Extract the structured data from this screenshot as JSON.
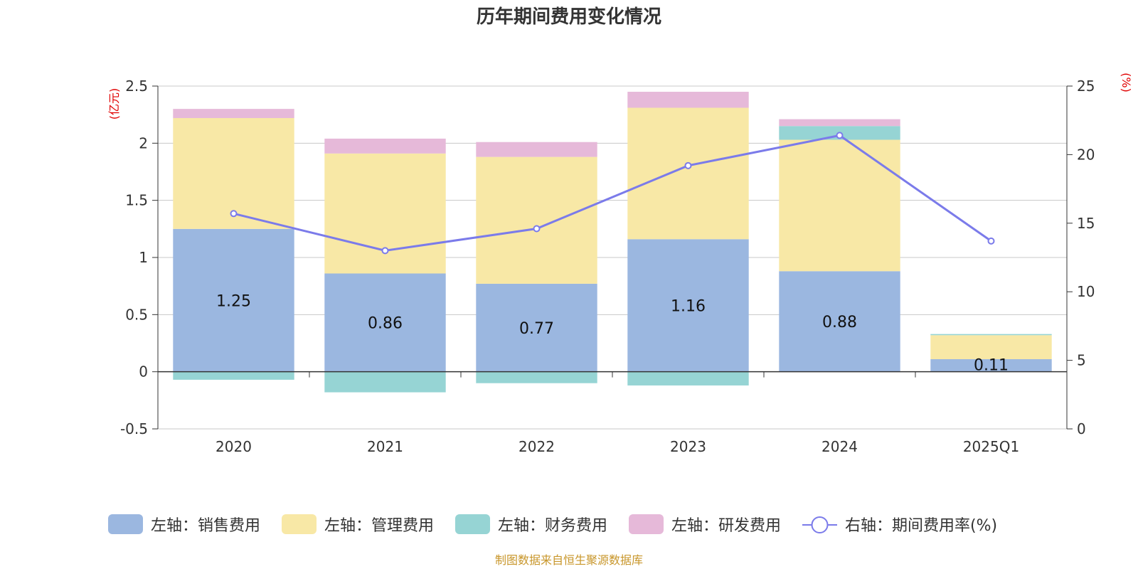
{
  "chart_data": {
    "type": "bar",
    "title": "历年期间费用变化情况",
    "categories": [
      "2020",
      "2021",
      "2022",
      "2023",
      "2024",
      "2025Q1"
    ],
    "left_axis": {
      "unit": "(亿元)",
      "min": -0.5,
      "max": 2.5,
      "ticks": [
        "-0.5",
        "0",
        "0.5",
        "1",
        "1.5",
        "2",
        "2.5"
      ]
    },
    "right_axis": {
      "unit": "(%)",
      "min": 0,
      "max": 25,
      "ticks": [
        "0",
        "5",
        "10",
        "15",
        "20",
        "25"
      ]
    },
    "series": [
      {
        "name": "左轴：销售费用",
        "type": "bar",
        "color": "#9bb7e0",
        "values": [
          1.25,
          0.86,
          0.77,
          1.16,
          0.88,
          0.11
        ],
        "labels": [
          "1.25",
          "0.86",
          "0.77",
          "1.16",
          "0.88",
          "0.11"
        ]
      },
      {
        "name": "左轴：管理费用",
        "type": "bar",
        "color": "#f8e8a6",
        "values": [
          0.97,
          1.05,
          1.11,
          1.15,
          1.15,
          0.21
        ]
      },
      {
        "name": "左轴：财务费用",
        "type": "bar",
        "color": "#96d4d4",
        "values": [
          -0.07,
          -0.18,
          -0.1,
          -0.12,
          0.12,
          0.01
        ]
      },
      {
        "name": "左轴：研发费用",
        "type": "bar",
        "color": "#e6b9d9",
        "values": [
          0.08,
          0.13,
          0.13,
          0.14,
          0.06,
          0.0
        ]
      },
      {
        "name": "右轴：期间费用率(%)",
        "type": "line",
        "color": "#7b7bea",
        "values": [
          15.7,
          13.0,
          14.6,
          19.2,
          21.4,
          13.7
        ]
      }
    ],
    "grid": true,
    "legend_position": "bottom"
  },
  "source": "制图数据来自恒生聚源数据库"
}
